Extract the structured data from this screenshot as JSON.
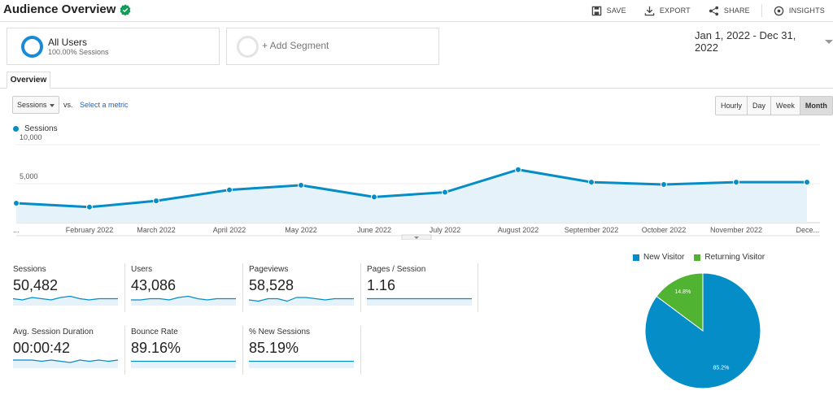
{
  "header": {
    "title": "Audience Overview",
    "actions": {
      "save": "SAVE",
      "export": "EXPORT",
      "share": "SHARE",
      "insights": "INSIGHTS"
    }
  },
  "segments": {
    "primary": {
      "name": "All Users",
      "sub": "100.00% Sessions"
    },
    "add": "+ Add Segment"
  },
  "date_range": "Jan 1, 2022 - Dec 31, 2022",
  "tab": "Overview",
  "controls": {
    "metric": "Sessions",
    "vs": "vs.",
    "select_metric": "Select a metric",
    "granularity": [
      "Hourly",
      "Day",
      "Week",
      "Month"
    ],
    "active_granularity": "Month"
  },
  "colors": {
    "accent": "#058dc7",
    "new_visitor": "#058dc7",
    "returning_visitor": "#50b432",
    "link": "#1a66c7"
  },
  "chart_data": [
    {
      "type": "area",
      "series": [
        {
          "name": "Sessions",
          "values": [
            2500,
            2000,
            2800,
            4200,
            4800,
            3300,
            3900,
            6800,
            5200,
            4900,
            5200,
            5200
          ]
        }
      ],
      "categories": [
        "...",
        "February 2022",
        "March 2022",
        "April 2022",
        "May 2022",
        "June 2022",
        "July 2022",
        "August 2022",
        "September 2022",
        "October 2022",
        "November 2022",
        "Dece..."
      ],
      "y_ticks": [
        "10,000",
        "5,000"
      ],
      "ylim": [
        0,
        10000
      ],
      "grid": true
    },
    {
      "type": "pie",
      "legend": [
        "New Visitor",
        "Returning Visitor"
      ],
      "values": [
        85.2,
        14.8
      ],
      "labels": [
        "85.2%",
        "14.8%"
      ],
      "legend_position": "top"
    }
  ],
  "metrics": [
    {
      "label": "Sessions",
      "value": "50,482",
      "spark": [
        5,
        4,
        6,
        5,
        4,
        6,
        7,
        5,
        4,
        5,
        5,
        5
      ]
    },
    {
      "label": "Users",
      "value": "43,086",
      "spark": [
        4,
        4,
        5,
        5,
        4,
        6,
        7,
        5,
        4,
        5,
        5,
        5
      ]
    },
    {
      "label": "Pageviews",
      "value": "58,528",
      "spark": [
        4,
        3,
        5,
        5,
        3,
        6,
        6,
        5,
        4,
        5,
        5,
        5
      ]
    },
    {
      "label": "Pages / Session",
      "value": "1.16",
      "spark": [
        5,
        5,
        5,
        5,
        5,
        5,
        5,
        5,
        5,
        5,
        5,
        5
      ]
    },
    {
      "label": "Avg. Session Duration",
      "value": "00:00:42",
      "spark": [
        6,
        6,
        6,
        5,
        6,
        5,
        4,
        6,
        5,
        6,
        5,
        6
      ]
    },
    {
      "label": "Bounce Rate",
      "value": "89.16%",
      "spark": [
        5,
        5,
        5,
        5,
        5,
        5,
        5,
        5,
        5,
        5,
        5,
        5
      ]
    },
    {
      "label": "% New Sessions",
      "value": "85.19%",
      "spark": [
        5,
        5,
        5,
        5,
        5,
        5,
        5,
        5,
        5,
        5,
        5,
        5
      ]
    }
  ]
}
